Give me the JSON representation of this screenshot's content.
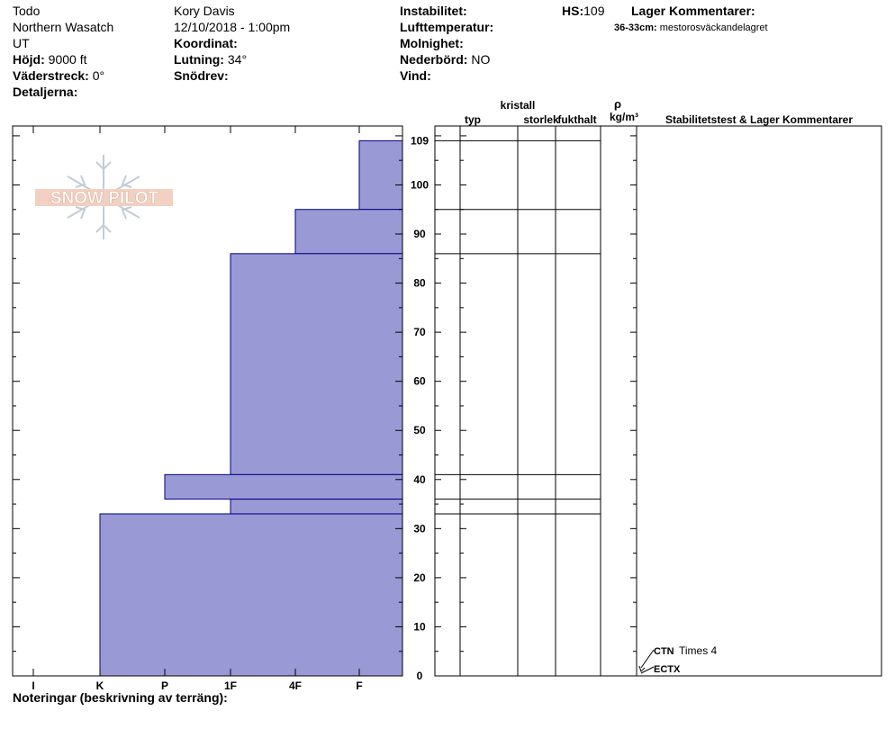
{
  "header": {
    "name": "Todo",
    "region": "Northern Wasatch",
    "state": "UT",
    "elevation_label": "Höjd:",
    "elevation_value": "9000 ft",
    "aspect_label": "Väderstreck:",
    "aspect_value": "0°",
    "details_label": "Detaljerna:",
    "observer": "Kory Davis",
    "datetime": "12/10/2018 - 1:00pm",
    "coords_label": "Koordinat:",
    "slope_label": "Lutning:",
    "slope_value": "34°",
    "wind_loading_label": "Snödrev:",
    "instability_label": "Instabilitet:",
    "air_temp_label": "Lufttemperatur:",
    "sky_label": "Molnighet:",
    "precip_label": "Nederbörd:",
    "precip_value": "NO",
    "wind_label": "Vind:",
    "hs_label": "HS:",
    "hs_value": "109",
    "layer_comments_label": "Lager Kommentarer:",
    "layer_comment_depth": "36-33cm:",
    "layer_comment_text": "mestorosväckandelagret"
  },
  "columns": {
    "crystal": "kristall",
    "type": "typ",
    "size": "storlek",
    "moisture": "fukthalt",
    "rho": "ρ",
    "density_unit": "kg/m³",
    "stability": "Stabilitetstest & Lager Kommentarer"
  },
  "footer": {
    "notes_label": "Noteringar (beskrivning av terräng):"
  },
  "logo_text": "SNOW PILOT",
  "chart_data": {
    "type": "bar",
    "title": "",
    "xlabel": "",
    "ylabel": "",
    "orientation": "horizontal",
    "hardness_scale": [
      "I",
      "K",
      "P",
      "1F",
      "4F",
      "F"
    ],
    "ylim": [
      0,
      112
    ],
    "y_ticks": [
      0,
      10,
      20,
      30,
      40,
      50,
      60,
      70,
      80,
      90,
      100,
      109
    ],
    "layers": [
      {
        "bottom": 95,
        "top": 109,
        "hardness": "F"
      },
      {
        "bottom": 86,
        "top": 95,
        "hardness": "4F"
      },
      {
        "bottom": 41,
        "top": 86,
        "hardness": "1F"
      },
      {
        "bottom": 36,
        "top": 41,
        "hardness": "P"
      },
      {
        "bottom": 33,
        "top": 36,
        "hardness": "1F"
      },
      {
        "bottom": 0,
        "top": 33,
        "hardness": "K"
      }
    ],
    "layer_boundaries": [
      109,
      95,
      86,
      41,
      36,
      33
    ],
    "tests": [
      {
        "label": "CTN",
        "detail": "Times 4",
        "depth": 0
      },
      {
        "label": "ECTX",
        "detail": "",
        "depth": 0
      }
    ],
    "bar_color": "#9999d6",
    "bar_edge_color": "#000080"
  }
}
